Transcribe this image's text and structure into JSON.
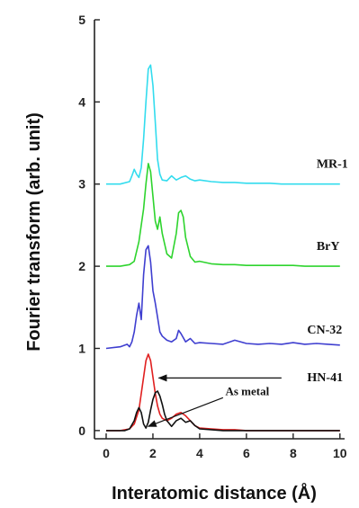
{
  "chart_data": {
    "type": "line",
    "title": "",
    "xlabel": "Interatomic distance (Å)",
    "ylabel": "Fourier transform (arb. unit)",
    "xlim": [
      -0.5,
      10.2
    ],
    "ylim": [
      -0.1,
      5
    ],
    "xticks": [
      0,
      2,
      4,
      6,
      8,
      10
    ],
    "yticks": [
      0,
      1,
      2,
      3,
      4,
      5
    ],
    "grid": false,
    "series": [
      {
        "name": "MR-1",
        "color": "#33dcee",
        "x": [
          0,
          0.6,
          1.0,
          1.1,
          1.2,
          1.3,
          1.4,
          1.5,
          1.6,
          1.7,
          1.8,
          1.9,
          2.0,
          2.1,
          2.2,
          2.3,
          2.4,
          2.6,
          2.8,
          3.0,
          3.2,
          3.4,
          3.6,
          3.8,
          4.0,
          4.5,
          5.0,
          5.5,
          6.0,
          6.5,
          7.0,
          7.5,
          8.0,
          8.5,
          9.0,
          9.5,
          10
        ],
        "y": [
          3.0,
          3.0,
          3.03,
          3.1,
          3.18,
          3.12,
          3.08,
          3.2,
          3.55,
          4.0,
          4.4,
          4.45,
          4.2,
          3.75,
          3.3,
          3.12,
          3.05,
          3.04,
          3.1,
          3.05,
          3.08,
          3.1,
          3.06,
          3.04,
          3.05,
          3.03,
          3.02,
          3.02,
          3.01,
          3.01,
          3.01,
          3.0,
          3.0,
          3.0,
          3.0,
          3.0,
          3.0
        ]
      },
      {
        "name": "BrY",
        "color": "#2ed42e",
        "x": [
          0,
          0.6,
          1.0,
          1.2,
          1.4,
          1.5,
          1.6,
          1.7,
          1.8,
          1.9,
          2.0,
          2.1,
          2.2,
          2.3,
          2.4,
          2.6,
          2.8,
          3.0,
          3.1,
          3.2,
          3.3,
          3.4,
          3.6,
          3.8,
          4.0,
          4.5,
          5.0,
          5.5,
          6.0,
          6.5,
          7.0,
          7.5,
          8.0,
          8.5,
          9.0,
          9.5,
          10
        ],
        "y": [
          2.0,
          2.0,
          2.02,
          2.06,
          2.3,
          2.5,
          2.7,
          3.0,
          3.25,
          3.15,
          2.85,
          2.55,
          2.45,
          2.6,
          2.4,
          2.15,
          2.1,
          2.4,
          2.65,
          2.68,
          2.6,
          2.35,
          2.12,
          2.05,
          2.06,
          2.03,
          2.02,
          2.02,
          2.01,
          2.01,
          2.01,
          2.01,
          2.01,
          2.0,
          2.0,
          2.0,
          2.0
        ]
      },
      {
        "name": "CN-32",
        "color": "#3f3fd0",
        "x": [
          0,
          0.6,
          0.9,
          1.0,
          1.1,
          1.2,
          1.3,
          1.4,
          1.5,
          1.6,
          1.7,
          1.8,
          1.9,
          2.0,
          2.1,
          2.2,
          2.3,
          2.4,
          2.6,
          2.8,
          3.0,
          3.1,
          3.2,
          3.4,
          3.6,
          3.8,
          4.0,
          4.5,
          5.0,
          5.5,
          6.0,
          6.5,
          7.0,
          7.5,
          8.0,
          8.5,
          9.0,
          9.5,
          10
        ],
        "y": [
          1.0,
          1.02,
          1.05,
          1.02,
          1.08,
          1.2,
          1.4,
          1.55,
          1.35,
          1.9,
          2.2,
          2.25,
          2.05,
          1.7,
          1.55,
          1.38,
          1.2,
          1.15,
          1.1,
          1.08,
          1.12,
          1.22,
          1.18,
          1.08,
          1.12,
          1.06,
          1.07,
          1.06,
          1.05,
          1.1,
          1.06,
          1.05,
          1.06,
          1.05,
          1.07,
          1.05,
          1.06,
          1.05,
          1.04
        ]
      },
      {
        "name": "HN-41",
        "color": "#e02020",
        "x": [
          0,
          0.6,
          1.0,
          1.2,
          1.4,
          1.5,
          1.6,
          1.7,
          1.8,
          1.9,
          2.0,
          2.1,
          2.2,
          2.3,
          2.4,
          2.6,
          2.8,
          3.0,
          3.2,
          3.4,
          3.6,
          3.8,
          4.0,
          4.5,
          5.0,
          5.5,
          6.0,
          7.0,
          8.0,
          9.0,
          10
        ],
        "y": [
          0.0,
          0.0,
          0.02,
          0.08,
          0.25,
          0.45,
          0.65,
          0.85,
          0.93,
          0.85,
          0.65,
          0.45,
          0.3,
          0.2,
          0.15,
          0.12,
          0.15,
          0.2,
          0.22,
          0.18,
          0.12,
          0.06,
          0.03,
          0.02,
          0.01,
          0.01,
          0.0,
          0.0,
          0.0,
          0.0,
          0.0
        ]
      },
      {
        "name": "As metal",
        "color": "#111111",
        "x": [
          0,
          0.8,
          1.0,
          1.2,
          1.3,
          1.4,
          1.5,
          1.6,
          1.7,
          1.8,
          1.9,
          2.0,
          2.1,
          2.2,
          2.3,
          2.4,
          2.5,
          2.6,
          2.8,
          3.0,
          3.2,
          3.4,
          3.6,
          3.8,
          4.0,
          4.5,
          5.0,
          6.0,
          8.0,
          10
        ],
        "y": [
          0.0,
          0.0,
          0.02,
          0.12,
          0.22,
          0.28,
          0.22,
          0.08,
          0.03,
          0.1,
          0.25,
          0.38,
          0.46,
          0.48,
          0.42,
          0.32,
          0.2,
          0.12,
          0.05,
          0.12,
          0.15,
          0.1,
          0.12,
          0.06,
          0.02,
          0.01,
          0.0,
          0.0,
          0.0,
          0.0
        ]
      }
    ],
    "series_labels": [
      {
        "text": "MR-1",
        "x": 9.0,
        "y": 3.2
      },
      {
        "text": "BrY",
        "x": 9.0,
        "y": 2.2
      },
      {
        "text": "CN-32",
        "x": 8.6,
        "y": 1.18
      },
      {
        "text": "HN-41",
        "x": 8.6,
        "y": 0.6
      },
      {
        "text": "As metal",
        "x": 5.1,
        "y": 0.43
      }
    ],
    "annotations": [
      {
        "label": "HN-41",
        "from": [
          7.5,
          0.64
        ],
        "to": [
          2.25,
          0.64
        ]
      },
      {
        "label": "As metal",
        "from": [
          5.0,
          0.4
        ],
        "to": [
          1.8,
          0.05
        ]
      }
    ]
  }
}
